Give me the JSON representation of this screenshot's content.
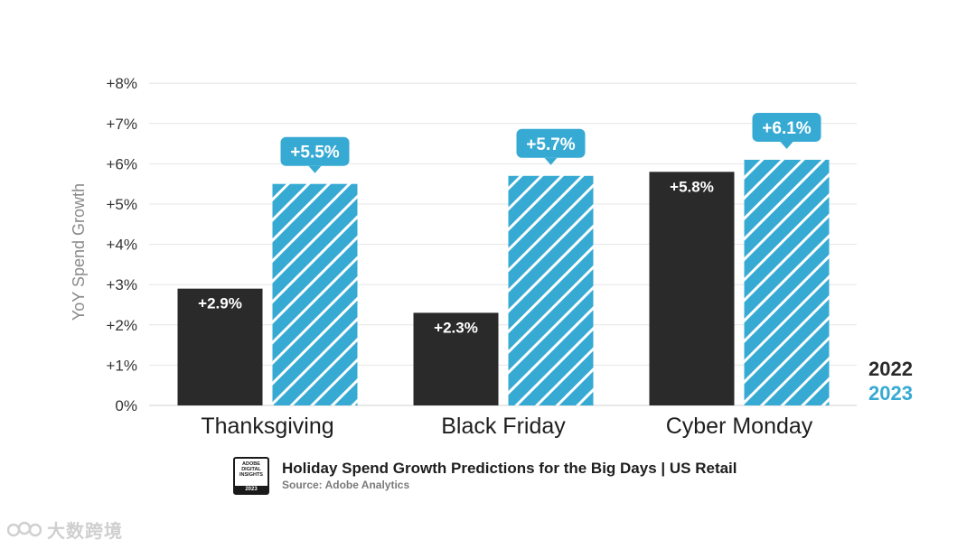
{
  "colors": {
    "y2022": "#2a2a2a",
    "y2023": "#37aad4",
    "grid": "#e6e6e6",
    "baseline": "#d0d0d0"
  },
  "chart_data": {
    "type": "bar",
    "title": "Holiday Spend Growth Predictions for the Big Days | US Retail",
    "source": "Source: Adobe Analytics",
    "xlabel": "",
    "ylabel": "YoY Spend Growth",
    "ylim": [
      0,
      8
    ],
    "yticks": [
      "0%",
      "+1%",
      "+2%",
      "+3%",
      "+4%",
      "+5%",
      "+6%",
      "+7%",
      "+8%"
    ],
    "grid": true,
    "legend_position": "bottom-right",
    "categories": [
      "Thanksgiving",
      "Black Friday",
      "Cyber Monday"
    ],
    "series": [
      {
        "name": "2022",
        "values": [
          2.9,
          2.3,
          5.8
        ],
        "labels": [
          "+2.9%",
          "+2.3%",
          "+5.8%"
        ],
        "style": "solid"
      },
      {
        "name": "2023",
        "values": [
          5.5,
          5.7,
          6.1
        ],
        "labels": [
          "+5.5%",
          "+5.7%",
          "+6.1%"
        ],
        "style": "hatched"
      }
    ]
  },
  "badge": {
    "text": "ADOBE\nDIGITAL\nINSIGHTS",
    "year": "2023"
  },
  "watermark": {
    "text": "大数跨境",
    "icon": "kuajing-logo"
  }
}
